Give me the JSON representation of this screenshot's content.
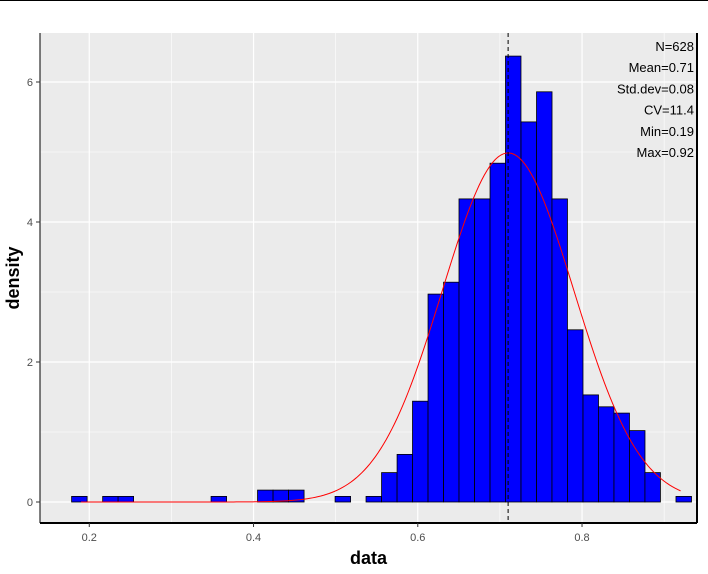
{
  "chart_data": {
    "type": "bar",
    "xlabel": "data",
    "ylabel": "density",
    "xlim": [
      0.14,
      0.94
    ],
    "ylim": [
      -0.3,
      6.7
    ],
    "xticks": [
      0.2,
      0.4,
      0.6,
      0.8
    ],
    "xtick_labels": [
      "0.2",
      "0.4",
      "0.6",
      "0.8"
    ],
    "yticks": [
      0,
      2,
      4,
      6
    ],
    "ytick_labels": [
      "0",
      "2",
      "4",
      "6"
    ],
    "grid": true,
    "bin_width": 0.01887,
    "bins": [
      {
        "start": 0.1785,
        "density": 0.08
      },
      {
        "start": 0.2163,
        "density": 0.08
      },
      {
        "start": 0.2351,
        "density": 0.08
      },
      {
        "start": 0.3483,
        "density": 0.08
      },
      {
        "start": 0.4049,
        "density": 0.17
      },
      {
        "start": 0.4238,
        "density": 0.17
      },
      {
        "start": 0.4427,
        "density": 0.17
      },
      {
        "start": 0.4993,
        "density": 0.08
      },
      {
        "start": 0.537,
        "density": 0.08
      },
      {
        "start": 0.5559,
        "density": 0.42
      },
      {
        "start": 0.5748,
        "density": 0.68
      },
      {
        "start": 0.5936,
        "density": 1.44
      },
      {
        "start": 0.6125,
        "density": 2.97
      },
      {
        "start": 0.6314,
        "density": 3.14
      },
      {
        "start": 0.6502,
        "density": 4.33
      },
      {
        "start": 0.6691,
        "density": 4.33
      },
      {
        "start": 0.688,
        "density": 4.84
      },
      {
        "start": 0.7068,
        "density": 6.37
      },
      {
        "start": 0.7257,
        "density": 5.43
      },
      {
        "start": 0.7446,
        "density": 5.86
      },
      {
        "start": 0.7634,
        "density": 4.33
      },
      {
        "start": 0.7823,
        "density": 2.46
      },
      {
        "start": 0.8012,
        "density": 1.53
      },
      {
        "start": 0.82,
        "density": 1.36
      },
      {
        "start": 0.8389,
        "density": 1.27
      },
      {
        "start": 0.8578,
        "density": 1.02
      },
      {
        "start": 0.8766,
        "density": 0.42
      },
      {
        "start": 0.9144,
        "density": 0.08
      }
    ],
    "normal_curve": {
      "mean": 0.71,
      "sd": 0.08,
      "x_range": [
        0.19,
        0.92
      ],
      "color": "#ff0000"
    },
    "mean_line": {
      "x": 0.71,
      "style": "dashed",
      "color": "#000000"
    },
    "stats": [
      "N=628",
      "Mean=0.71",
      "Std.dev=0.08",
      "CV=11.4",
      "Min=0.19",
      "Max=0.92"
    ],
    "colors": {
      "bar_fill": "#0000ff",
      "bar_outline": "#000000",
      "panel_background": "#ebebeb",
      "grid": "#ffffff",
      "curve": "#ff0000"
    }
  }
}
